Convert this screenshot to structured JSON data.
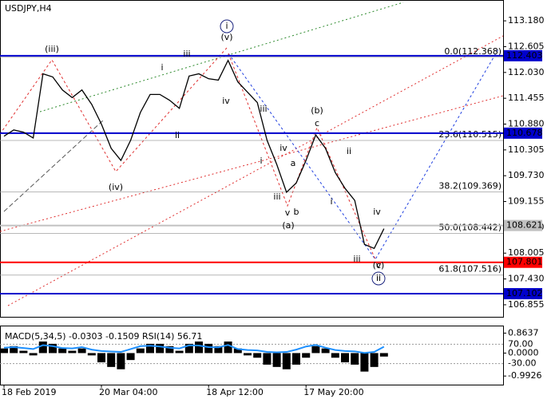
{
  "chart_data": [
    {
      "type": "line",
      "title": "USDJPY,H4",
      "categories": [
        "18 Feb 2019",
        null,
        null,
        null,
        null,
        null,
        null,
        null,
        null,
        null,
        "20 Mar 04:00",
        null,
        null,
        null,
        null,
        null,
        null,
        null,
        null,
        null,
        null,
        "18 Apr 12:00",
        null,
        null,
        null,
        null,
        null,
        null,
        null,
        null,
        null,
        "17 May 20:00",
        null,
        null,
        null,
        null,
        null,
        null,
        null,
        null
      ],
      "values": [
        110.61,
        110.75,
        110.7,
        110.57,
        112.0,
        111.93,
        111.64,
        111.47,
        111.64,
        111.32,
        110.88,
        110.34,
        110.07,
        110.52,
        111.14,
        111.54,
        111.54,
        111.41,
        111.23,
        111.95,
        112.0,
        111.89,
        111.86,
        112.3,
        111.82,
        111.59,
        111.36,
        110.52,
        109.98,
        109.36,
        109.57,
        110.07,
        110.64,
        110.34,
        109.8,
        109.45,
        109.18,
        108.2,
        108.11,
        108.55
      ],
      "color": "#000000",
      "ylim": [
        106.587,
        113.644
      ],
      "yticks": [
        {
          "value": 113.18,
          "label": "113.180"
        },
        112.605,
        {
          "value": 112.03,
          "label": "112.030"
        },
        111.455,
        {
          "value": 110.88,
          "label": "110.880"
        },
        110.305,
        {
          "value": 109.73,
          "label": "109.730"
        },
        109.155,
        {
          "value": 108.58,
          "label": "108.580"
        },
        108.005,
        {
          "value": 107.43,
          "label": "107.430"
        },
        106.855
      ],
      "levels": [
        {
          "value": 112.403,
          "color": "#0000cc"
        },
        {
          "value": 110.678,
          "color": "#0000cc"
        },
        {
          "value": 108.621,
          "color": "#c0c0c0"
        },
        {
          "value": 107.801,
          "color": "#ff0000"
        },
        {
          "value": 107.102,
          "color": "#0000cc"
        }
      ],
      "fibonacci": [
        {
          "value": 112.368,
          "label": "0.0(112.368)"
        },
        {
          "value": 110.515,
          "label": "23.6(110.515)"
        },
        {
          "value": 109.369,
          "label": "38.2(109.369)"
        },
        {
          "value": 108.442,
          "label": "50.0(108.442)"
        },
        {
          "value": 107.516,
          "label": "61.8(107.516)"
        }
      ],
      "annotations": [
        {
          "text": "(iii)",
          "color": "#d00000"
        },
        {
          "text": "(iv)",
          "color": "#d00000"
        },
        {
          "text": "(v)",
          "color": "#d00000"
        },
        {
          "text": "i",
          "color": "#1a237e"
        },
        {
          "text": "i",
          "color": "#707070"
        },
        {
          "text": "iii",
          "color": "#707070"
        },
        {
          "text": "iv",
          "color": "#707070"
        },
        {
          "text": "ii",
          "color": "#707070"
        },
        {
          "text": "iii",
          "color": "#707070"
        },
        {
          "text": "iv",
          "color": "#707070"
        },
        {
          "text": "a",
          "color": "#707070"
        },
        {
          "text": "i",
          "color": "#707070"
        },
        {
          "text": "iii",
          "color": "#707070"
        },
        {
          "text": "v",
          "color": "#707070"
        },
        {
          "text": "b",
          "color": "#707070"
        },
        {
          "text": "(a)",
          "color": "#d00000"
        },
        {
          "text": "(b)",
          "color": "#d00000"
        },
        {
          "text": "c",
          "color": "#707070"
        },
        {
          "text": "ii",
          "color": "#707070"
        },
        {
          "text": "i",
          "color": "#707070"
        },
        {
          "text": "iii",
          "color": "#707070"
        },
        {
          "text": "iv",
          "color": "#707070"
        },
        {
          "text": "v",
          "color": "#707070"
        },
        {
          "text": "(c)",
          "color": "#d00000"
        },
        {
          "text": "ii",
          "color": "#1a237e"
        }
      ]
    },
    {
      "type": "bar",
      "title": "MACD(5,34,5) -0.0303 -0.1509 RSI(14) 56.71",
      "ylim": [
        -1.365,
        1.155
      ],
      "yticks": [
        0.8637,
        {
          "value": 0,
          "label": "0.0000"
        },
        -0.9926
      ],
      "y2lim": [
        -138.3,
        161.7
      ],
      "y2ticks": [
        {
          "value": 70,
          "label": "70.00"
        },
        {
          "value": -30,
          "label": "-30.00"
        }
      ],
      "series": [
        {
          "type": "bar",
          "color": "#000000",
          "values": [
            0.2,
            0.3,
            0.1,
            -0.1,
            0.5,
            0.4,
            0.2,
            0.1,
            0.2,
            -0.1,
            -0.4,
            -0.6,
            -0.7,
            -0.3,
            0.2,
            0.4,
            0.4,
            0.3,
            0.1,
            0.4,
            0.5,
            0.4,
            0.3,
            0.5,
            0.2,
            -0.1,
            -0.2,
            -0.5,
            -0.6,
            -0.7,
            -0.5,
            -0.2,
            0.3,
            0.2,
            -0.2,
            -0.4,
            -0.5,
            -0.8,
            -0.6,
            -0.15
          ]
        },
        {
          "type": "line",
          "axis": "y2",
          "color": "#1e90ff",
          "values": [
            52,
            55,
            50,
            45,
            65,
            60,
            50,
            48,
            55,
            42,
            35,
            32,
            30,
            45,
            60,
            62,
            58,
            52,
            48,
            64,
            63,
            55,
            54,
            66,
            45,
            40,
            38,
            30,
            28,
            30,
            42,
            58,
            66,
            52,
            40,
            35,
            33,
            25,
            30,
            56.71
          ]
        }
      ]
    }
  ]
}
